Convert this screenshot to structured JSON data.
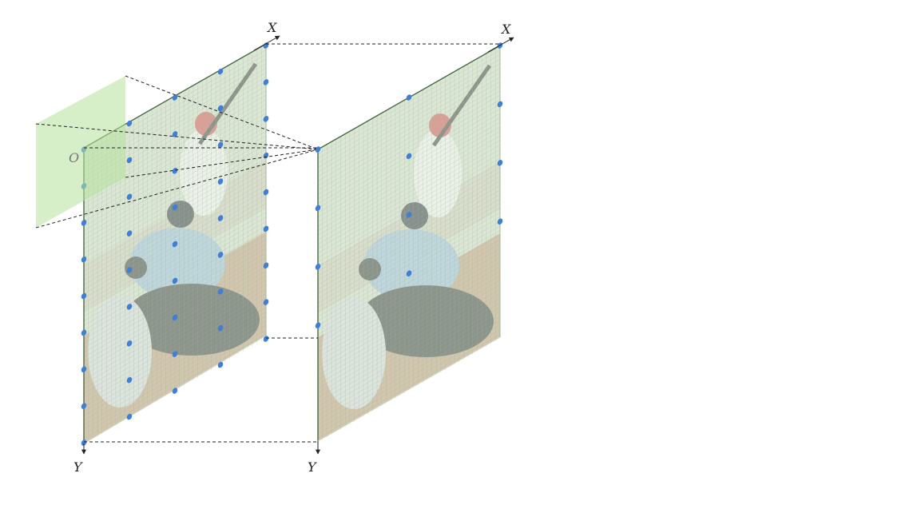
{
  "labels": {
    "plane_a_x_axis": "X",
    "plane_a_y_axis": "Y",
    "plane_a_origin": "O",
    "plane_b_x_axis": "X",
    "plane_b_y_axis": "Y"
  },
  "colors": {
    "plane_tint": "#a9c39a",
    "grid_line": "#9fb89a",
    "kernel_window": "#b6e29c",
    "sample_point": "#3f7fd6",
    "edge_line": "#4a6a44"
  },
  "grids": {
    "plane_a": {
      "columns": 5,
      "rows": 8
    },
    "plane_b": {
      "columns": 3,
      "rows": 4
    }
  }
}
